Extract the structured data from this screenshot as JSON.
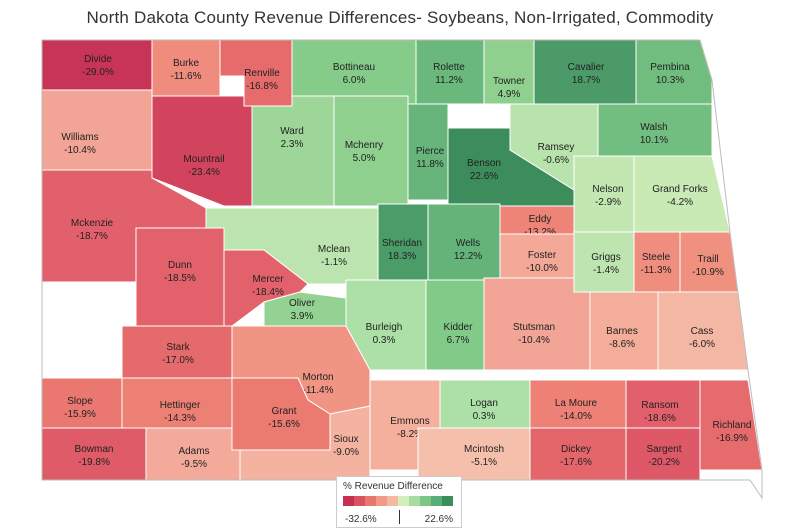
{
  "title": "North Dakota County Revenue Differences- Soybeans, Non-Irrigated, Commodity",
  "legend": {
    "title": "% Revenue Difference",
    "min": "-32.6%",
    "max": "22.6%",
    "steps": [
      "#c7304f",
      "#d9525f",
      "#e8786f",
      "#f09b87",
      "#f4b8a3",
      "#d6eebd",
      "#a7dca0",
      "#7cc686",
      "#58ae74",
      "#3d8c5c"
    ]
  },
  "counties": [
    {
      "name": "Divide",
      "value": "-29.0%",
      "color": "#c73458"
    },
    {
      "name": "Burke",
      "value": "-11.6%",
      "color": "#ef8c7e"
    },
    {
      "name": "Renville",
      "value": "-16.8%",
      "color": "#e86b6c"
    },
    {
      "name": "Bottineau",
      "value": "6.0%",
      "color": "#85cc8a"
    },
    {
      "name": "Rolette",
      "value": "11.2%",
      "color": "#6ab87c"
    },
    {
      "name": "Towner",
      "value": "4.9%",
      "color": "#8fd08f"
    },
    {
      "name": "Cavalier",
      "value": "18.7%",
      "color": "#4b9a68"
    },
    {
      "name": "Pembina",
      "value": "10.3%",
      "color": "#70bd7f"
    },
    {
      "name": "Williams",
      "value": "-10.4%",
      "color": "#f2a496"
    },
    {
      "name": "Mountrail",
      "value": "-23.4%",
      "color": "#d2445d"
    },
    {
      "name": "Ward",
      "value": "2.3%",
      "color": "#9ed69a"
    },
    {
      "name": "Mchenry",
      "value": "5.0%",
      "color": "#8fd08f"
    },
    {
      "name": "Pierce",
      "value": "11.8%",
      "color": "#67b57a"
    },
    {
      "name": "Benson",
      "value": "22.6%",
      "color": "#3d8c5c"
    },
    {
      "name": "Ramsey",
      "value": "-0.6%",
      "color": "#b9e3ac"
    },
    {
      "name": "Walsh",
      "value": "10.1%",
      "color": "#71be80"
    },
    {
      "name": "Nelson",
      "value": "-2.9%",
      "color": "#c3e7b1"
    },
    {
      "name": "Grand Forks",
      "value": "-4.2%",
      "color": "#c9e9b5"
    },
    {
      "name": "Mckenzie",
      "value": "-18.7%",
      "color": "#e2606b"
    },
    {
      "name": "Dunn",
      "value": "-18.5%",
      "color": "#e2616b"
    },
    {
      "name": "Mclean",
      "value": "-1.1%",
      "color": "#bce4ae"
    },
    {
      "name": "Sheridan",
      "value": "18.3%",
      "color": "#4c9c69"
    },
    {
      "name": "Wells",
      "value": "12.2%",
      "color": "#64b379"
    },
    {
      "name": "Eddy",
      "value": "-13.2%",
      "color": "#ee8378"
    },
    {
      "name": "Foster",
      "value": "-10.0%",
      "color": "#f3a898"
    },
    {
      "name": "Griggs",
      "value": "-1.4%",
      "color": "#bee5af"
    },
    {
      "name": "Steele",
      "value": "-11.3%",
      "color": "#ef8e7e"
    },
    {
      "name": "Traill",
      "value": "-10.9%",
      "color": "#f0917f"
    },
    {
      "name": "Mercer",
      "value": "-18.4%",
      "color": "#e2616b"
    },
    {
      "name": "Oliver",
      "value": "3.9%",
      "color": "#94d293"
    },
    {
      "name": "Burleigh",
      "value": "0.3%",
      "color": "#ade0a6"
    },
    {
      "name": "Kidder",
      "value": "6.7%",
      "color": "#81ca88"
    },
    {
      "name": "Stutsman",
      "value": "-10.4%",
      "color": "#f2a496"
    },
    {
      "name": "Barnes",
      "value": "-8.6%",
      "color": "#f3ad9a"
    },
    {
      "name": "Cass",
      "value": "-6.0%",
      "color": "#f4b7a3"
    },
    {
      "name": "Stark",
      "value": "-17.0%",
      "color": "#e56a6c"
    },
    {
      "name": "Morton",
      "value": "-11.4%",
      "color": "#f09483"
    },
    {
      "name": "Slope",
      "value": "-15.9%",
      "color": "#eb7870"
    },
    {
      "name": "Hettinger",
      "value": "-14.3%",
      "color": "#ed8074"
    },
    {
      "name": "Grant",
      "value": "-15.6%",
      "color": "#eb7a71"
    },
    {
      "name": "Emmons",
      "value": "-8.2%",
      "color": "#f4b09c"
    },
    {
      "name": "Logan",
      "value": "0.3%",
      "color": "#ade0a6"
    },
    {
      "name": "La Moure",
      "value": "-14.0%",
      "color": "#ed8175"
    },
    {
      "name": "Ransom",
      "value": "-18.6%",
      "color": "#e2606b"
    },
    {
      "name": "Richland",
      "value": "-16.9%",
      "color": "#e56b6c"
    },
    {
      "name": "Bowman",
      "value": "-19.8%",
      "color": "#df5b68"
    },
    {
      "name": "Adams",
      "value": "-9.5%",
      "color": "#f3aa9a"
    },
    {
      "name": "Sioux",
      "value": "-9.0%",
      "color": "#f4b3a0"
    },
    {
      "name": "Mcintosh",
      "value": "-5.1%",
      "color": "#f5c0ab"
    },
    {
      "name": "Dickey",
      "value": "-17.6%",
      "color": "#e4666b"
    },
    {
      "name": "Sargent",
      "value": "-20.2%",
      "color": "#de5868"
    }
  ]
}
